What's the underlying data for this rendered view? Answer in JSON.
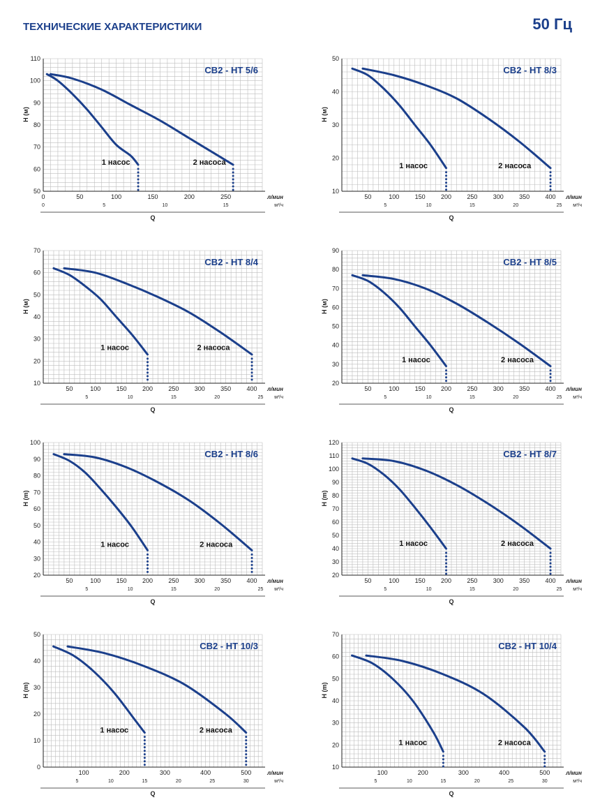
{
  "page": {
    "title": "ТЕХНИЧЕСКИЕ ХАРАКТЕРИСТИКИ",
    "frequency": "50 Гц"
  },
  "colors": {
    "curve": "#1b3f8b",
    "title": "#1b3f8b",
    "grid": "#bdbdbd",
    "axis": "#222222"
  },
  "chart_data": [
    {
      "type": "line",
      "title": "CB2 - HT 5/6",
      "ylabel": "H (м)",
      "xlabel": "Q",
      "x_unit": "л/мин",
      "x2_unit": "м³/ч",
      "ylim": [
        50,
        110
      ],
      "yticks": [
        50,
        60,
        70,
        80,
        90,
        100,
        110
      ],
      "xlim": [
        0,
        300
      ],
      "xticks": [
        0,
        50,
        100,
        150,
        200,
        250
      ],
      "x2ticks": [
        0,
        5,
        10,
        15
      ],
      "series": [
        {
          "name": "1 насос",
          "x": [
            5,
            20,
            40,
            60,
            80,
            100,
            120,
            130
          ],
          "y": [
            103,
            100,
            94,
            87,
            79,
            71,
            66,
            62
          ],
          "label_pos": [
            80,
            62
          ]
        },
        {
          "name": "2 насоса",
          "x": [
            10,
            40,
            80,
            120,
            160,
            200,
            240,
            260
          ],
          "y": [
            103,
            101,
            96,
            89,
            82,
            74,
            66,
            62
          ],
          "label_pos": [
            205,
            62
          ]
        }
      ]
    },
    {
      "type": "line",
      "title": "CB2 - HT 8/3",
      "ylabel": "H (м)",
      "xlabel": "Q",
      "x_unit": "л/мин",
      "x2_unit": "м³/ч",
      "ylim": [
        10,
        50
      ],
      "yticks": [
        10,
        20,
        30,
        40,
        50
      ],
      "xlim": [
        0,
        420
      ],
      "xticks": [
        50,
        100,
        150,
        200,
        250,
        300,
        350,
        400
      ],
      "x2ticks": [
        5,
        10,
        15,
        20,
        25
      ],
      "series": [
        {
          "name": "1 насос",
          "x": [
            20,
            50,
            80,
            110,
            140,
            170,
            200
          ],
          "y": [
            47,
            45,
            41,
            36,
            30,
            24,
            17
          ],
          "label_pos": [
            110,
            17
          ]
        },
        {
          "name": "2 насоса",
          "x": [
            40,
            100,
            160,
            220,
            280,
            340,
            400
          ],
          "y": [
            47,
            45,
            42,
            38,
            32,
            25,
            17
          ],
          "label_pos": [
            300,
            17
          ]
        }
      ]
    },
    {
      "type": "line",
      "title": "CB2 - HT 8/4",
      "ylabel": "H (м)",
      "xlabel": "Q",
      "x_unit": "л/мин",
      "x2_unit": "м³/ч",
      "ylim": [
        10,
        70
      ],
      "yticks": [
        10,
        20,
        30,
        40,
        50,
        60,
        70
      ],
      "xlim": [
        0,
        420
      ],
      "xticks": [
        50,
        100,
        150,
        200,
        250,
        300,
        350,
        400
      ],
      "x2ticks": [
        5,
        10,
        15,
        20,
        25
      ],
      "series": [
        {
          "name": "1 насос",
          "x": [
            20,
            50,
            80,
            110,
            140,
            170,
            200
          ],
          "y": [
            62,
            59,
            54,
            48,
            40,
            32,
            23
          ],
          "label_pos": [
            110,
            25
          ]
        },
        {
          "name": "2 насоса",
          "x": [
            40,
            100,
            160,
            220,
            280,
            340,
            400
          ],
          "y": [
            62,
            60,
            55,
            49,
            42,
            33,
            23
          ],
          "label_pos": [
            295,
            25
          ]
        }
      ]
    },
    {
      "type": "line",
      "title": "CB2 - HT 8/5",
      "ylabel": "H (м)",
      "xlabel": "Q",
      "x_unit": "л/мин",
      "x2_unit": "м³/ч",
      "ylim": [
        20,
        90
      ],
      "yticks": [
        20,
        30,
        40,
        50,
        60,
        70,
        80,
        90
      ],
      "xlim": [
        0,
        420
      ],
      "xticks": [
        50,
        100,
        150,
        200,
        250,
        300,
        350,
        400
      ],
      "x2ticks": [
        5,
        10,
        15,
        20,
        25
      ],
      "series": [
        {
          "name": "1 насос",
          "x": [
            20,
            50,
            80,
            110,
            140,
            170,
            200
          ],
          "y": [
            77,
            74,
            68,
            60,
            50,
            40,
            29
          ],
          "label_pos": [
            115,
            31
          ]
        },
        {
          "name": "2 насоса",
          "x": [
            40,
            100,
            160,
            220,
            280,
            340,
            400
          ],
          "y": [
            77,
            75,
            70,
            62,
            52,
            41,
            29
          ],
          "label_pos": [
            305,
            31
          ]
        }
      ]
    },
    {
      "type": "line",
      "title": "CB2 - HT 8/6",
      "ylabel": "H (m)",
      "xlabel": "Q",
      "x_unit": "л/мин",
      "x2_unit": "м³/ч",
      "ylim": [
        20,
        100
      ],
      "yticks": [
        20,
        30,
        40,
        50,
        60,
        70,
        80,
        90,
        100
      ],
      "xlim": [
        0,
        420
      ],
      "xticks": [
        50,
        100,
        150,
        200,
        250,
        300,
        350,
        400
      ],
      "x2ticks": [
        5,
        10,
        15,
        20,
        25
      ],
      "series": [
        {
          "name": "1 насос",
          "x": [
            20,
            50,
            80,
            110,
            140,
            170,
            200
          ],
          "y": [
            93,
            89,
            82,
            72,
            61,
            49,
            35
          ],
          "label_pos": [
            110,
            37
          ]
        },
        {
          "name": "2 насоса",
          "x": [
            40,
            100,
            160,
            220,
            280,
            340,
            400
          ],
          "y": [
            93,
            91,
            85,
            76,
            65,
            51,
            35
          ],
          "label_pos": [
            300,
            37
          ]
        }
      ]
    },
    {
      "type": "line",
      "title": "CB2 - HT 8/7",
      "ylabel": "H (m)",
      "xlabel": "Q",
      "x_unit": "л/мин",
      "x2_unit": "м³/ч",
      "ylim": [
        20,
        120
      ],
      "yticks": [
        20,
        30,
        40,
        50,
        60,
        70,
        80,
        90,
        100,
        110,
        120
      ],
      "xlim": [
        0,
        420
      ],
      "xticks": [
        50,
        100,
        150,
        200,
        250,
        300,
        350,
        400
      ],
      "x2ticks": [
        5,
        10,
        15,
        20,
        25
      ],
      "series": [
        {
          "name": "1 насос",
          "x": [
            20,
            50,
            80,
            110,
            140,
            170,
            200
          ],
          "y": [
            108,
            104,
            96,
            85,
            71,
            56,
            40
          ],
          "label_pos": [
            110,
            42
          ]
        },
        {
          "name": "2 насоса",
          "x": [
            40,
            100,
            160,
            220,
            280,
            340,
            400
          ],
          "y": [
            108,
            106,
            99,
            88,
            74,
            58,
            40
          ],
          "label_pos": [
            305,
            42
          ]
        }
      ]
    },
    {
      "type": "line",
      "title": "CB2 - HT 10/3",
      "ylabel": "H (m)",
      "xlabel": "Q",
      "x_unit": "л/мин",
      "x2_unit": "м³/ч",
      "ylim": [
        0,
        50
      ],
      "yticks": [
        0,
        10,
        20,
        30,
        40,
        50
      ],
      "xlim": [
        0,
        540
      ],
      "xticks": [
        100,
        200,
        300,
        400,
        500
      ],
      "x2ticks": [
        5,
        10,
        15,
        20,
        25,
        30
      ],
      "series": [
        {
          "name": "1 насос",
          "x": [
            25,
            75,
            125,
            175,
            225,
            250
          ],
          "y": [
            45.5,
            42,
            36,
            28,
            18,
            13
          ],
          "label_pos": [
            140,
            13
          ]
        },
        {
          "name": "2 насоса",
          "x": [
            60,
            150,
            250,
            350,
            450,
            500
          ],
          "y": [
            45.5,
            43,
            38,
            31,
            20,
            13
          ],
          "label_pos": [
            385,
            13
          ]
        }
      ]
    },
    {
      "type": "line",
      "title": "CB2 - HT 10/4",
      "ylabel": "H (m)",
      "xlabel": "Q",
      "x_unit": "л/мин",
      "x2_unit": "м³/ч",
      "ylim": [
        10,
        70
      ],
      "yticks": [
        10,
        20,
        30,
        40,
        50,
        60,
        70
      ],
      "xlim": [
        0,
        540
      ],
      "xticks": [
        100,
        200,
        300,
        400,
        500
      ],
      "x2ticks": [
        5,
        10,
        15,
        20,
        25,
        30
      ],
      "series": [
        {
          "name": "1 насос",
          "x": [
            25,
            75,
            125,
            175,
            225,
            250
          ],
          "y": [
            60.5,
            57,
            50,
            40,
            26,
            17
          ],
          "label_pos": [
            140,
            20
          ]
        },
        {
          "name": "2 насоса",
          "x": [
            60,
            150,
            250,
            350,
            450,
            500
          ],
          "y": [
            60.5,
            58,
            52,
            43,
            28,
            17
          ],
          "label_pos": [
            385,
            20
          ]
        }
      ]
    }
  ]
}
